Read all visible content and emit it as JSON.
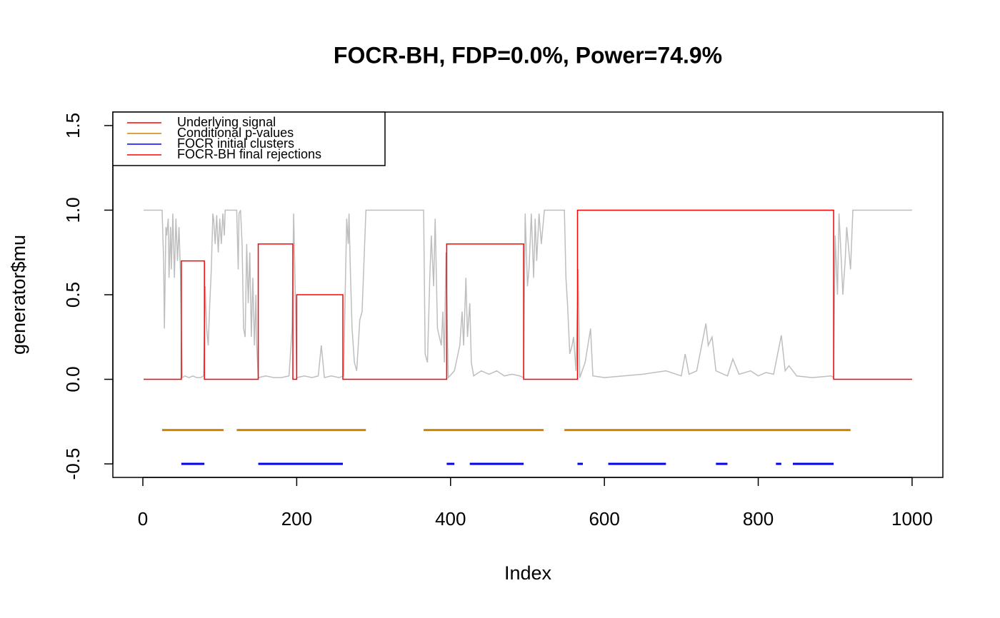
{
  "chart_data": {
    "type": "line",
    "title": "FOCR-BH, FDP=0.0%, Power=74.9%",
    "xlabel": "Index",
    "ylabel": "generator$mu",
    "xlim": [
      -39,
      1040
    ],
    "ylim": [
      -0.58,
      1.58
    ],
    "xticks": [
      0,
      200,
      400,
      600,
      800,
      1000
    ],
    "yticks": [
      -0.5,
      {
        "value": 0,
        "label": "0.0"
      },
      0.5,
      {
        "value": 1,
        "label": "1.0"
      },
      1.5
    ],
    "legend_position": "topleft",
    "legend": [
      {
        "label": "Underlying signal",
        "color": "#ff0000"
      },
      {
        "label": "Conditional p-values",
        "color": "#cd8500"
      },
      {
        "label": "FOCR initial clusters",
        "color": "#0000ff"
      },
      {
        "label": "FOCR-BH final rejections",
        "color": "#ff0000"
      }
    ],
    "series": [
      {
        "color": "#bebebe",
        "width": 1.5,
        "x": [
          1,
          25,
          27,
          28,
          30,
          31,
          33,
          34,
          36,
          37,
          39,
          41,
          43,
          45,
          47,
          49,
          51,
          55,
          60,
          65,
          70,
          75,
          79,
          81,
          83,
          85,
          87,
          89,
          91,
          92,
          94,
          96,
          98,
          100,
          102,
          104,
          106,
          107,
          122,
          124,
          125,
          127,
          129,
          131,
          133,
          135,
          137,
          139,
          141,
          143,
          145,
          147,
          148,
          150,
          160,
          170,
          180,
          190,
          194,
          196,
          198,
          200,
          210,
          220,
          228,
          232,
          236,
          245,
          255,
          261,
          263,
          265,
          267,
          268,
          270,
          272,
          275,
          278,
          282,
          285,
          290,
          365,
          367,
          370,
          373,
          375,
          378,
          380,
          383,
          388,
          390,
          392,
          394,
          397,
          405,
          412,
          415,
          417,
          420,
          422,
          425,
          427,
          430,
          440,
          450,
          460,
          470,
          480,
          490,
          495,
          497,
          500,
          502,
          505,
          508,
          510,
          512,
          515,
          518,
          522,
          548,
          550,
          552,
          555,
          558,
          560,
          563,
          566,
          568,
          575,
          582,
          585,
          600,
          650,
          680,
          700,
          705,
          710,
          720,
          732,
          735,
          740,
          745,
          760,
          767,
          775,
          790,
          800,
          810,
          820,
          830,
          835,
          840,
          850,
          870,
          895,
          898,
          900,
          903,
          905,
          908,
          910,
          913,
          915,
          918,
          920,
          923,
          1000
        ],
        "values": [
          1,
          1,
          0.7,
          0.3,
          0.9,
          0.85,
          0.95,
          0.6,
          0.9,
          0.65,
          0.98,
          0.6,
          0.95,
          0.7,
          0.9,
          0.6,
          0.01,
          0.02,
          0.01,
          0.02,
          0.01,
          0.01,
          0.02,
          0.55,
          0.3,
          0.2,
          0.45,
          0.65,
          0.98,
          0.95,
          0.8,
          0.97,
          0.75,
          0.95,
          0.8,
          0.98,
          0.85,
          1,
          1,
          0.65,
          0.98,
          1,
          0.8,
          0.3,
          0.25,
          0.8,
          0.45,
          0.75,
          0.25,
          0.6,
          0.2,
          0.5,
          0.2,
          0.01,
          0.02,
          0.01,
          0.01,
          0.02,
          0.3,
          0.98,
          0.55,
          0.01,
          0.02,
          0.01,
          0.02,
          0.2,
          0.01,
          0.02,
          0.01,
          0.02,
          0.5,
          0.95,
          0.8,
          0.98,
          0.6,
          0.3,
          0.1,
          0.05,
          0.35,
          0.4,
          1,
          1,
          0.15,
          0.1,
          0.6,
          0.85,
          0.55,
          0.95,
          0.3,
          0.2,
          0.4,
          0.1,
          0.75,
          0.01,
          0.05,
          0.2,
          0.4,
          0.2,
          0.6,
          0.25,
          0.45,
          0.1,
          0.02,
          0.05,
          0.03,
          0.05,
          0.02,
          0.03,
          0.02,
          0.01,
          0.98,
          0.55,
          0.65,
          0.98,
          0.6,
          0.95,
          0.7,
          0.98,
          0.8,
          1,
          1,
          0.6,
          0.45,
          0.15,
          0.2,
          0.25,
          0.05,
          0.65,
          0.01,
          0.1,
          0.3,
          0.02,
          0.01,
          0.03,
          0.05,
          0.02,
          0.15,
          0.03,
          0.05,
          0.33,
          0.2,
          0.25,
          0.05,
          0.02,
          0.12,
          0.03,
          0.05,
          0.02,
          0.04,
          0.03,
          0.26,
          0.05,
          0.08,
          0.02,
          0.01,
          0.02,
          0.01,
          0.85,
          0.5,
          0.98,
          0.7,
          0.5,
          0.7,
          0.9,
          0.75,
          0.65,
          1,
          1
        ]
      },
      {
        "color": "#ff0000",
        "width": 1.5,
        "x": [
          1,
          50,
          50,
          80,
          80,
          150,
          150,
          195,
          195,
          200,
          200,
          260,
          260,
          395,
          395,
          495,
          495,
          565,
          565,
          898,
          898,
          1000
        ],
        "values": [
          0,
          0,
          0.7,
          0.7,
          0,
          0,
          0.8,
          0.8,
          0,
          0,
          0.5,
          0.5,
          0,
          0,
          0.8,
          0.8,
          0,
          0,
          1,
          1,
          0,
          0
        ]
      },
      {
        "color": "#cd8500",
        "width": 3,
        "x": [
          25,
          105,
          113,
          122,
          290,
          327,
          365,
          521,
          534,
          548,
          920
        ],
        "values": [
          -0.3,
          -0.3,
          null,
          -0.3,
          -0.3,
          null,
          -0.3,
          -0.3,
          null,
          -0.3,
          -0.3
        ]
      },
      {
        "color": "#0000ff",
        "width": 3,
        "x": [
          50,
          80,
          115,
          150,
          260,
          327,
          395,
          405,
          417,
          425,
          495,
          530,
          565,
          572,
          576,
          605,
          680,
          690,
          745,
          760,
          775,
          823,
          830,
          840,
          845,
          898
        ],
        "values": [
          -0.5,
          -0.5,
          null,
          -0.5,
          -0.5,
          null,
          -0.5,
          -0.5,
          null,
          -0.5,
          -0.5,
          null,
          -0.5,
          -0.5,
          null,
          -0.5,
          -0.5,
          null,
          -0.5,
          -0.5,
          null,
          -0.5,
          -0.5,
          null,
          -0.5,
          -0.5
        ]
      }
    ]
  }
}
